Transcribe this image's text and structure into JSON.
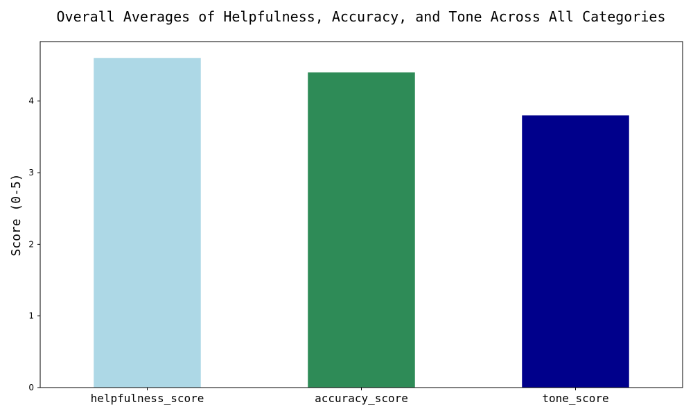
{
  "chart_data": {
    "type": "bar",
    "title": "Overall Averages of Helpfulness, Accuracy, and Tone Across All Categories",
    "xlabel": "",
    "ylabel": "Score (0-5)",
    "categories": [
      "helpfulness_score",
      "accuracy_score",
      "tone_score"
    ],
    "values": [
      4.6,
      4.4,
      3.8
    ],
    "colors": [
      "#add8e6",
      "#2e8b57",
      "#00008b"
    ],
    "ylim": [
      0,
      4.83
    ],
    "yticks": [
      0,
      1,
      2,
      3,
      4
    ],
    "grid": false,
    "legend": false
  }
}
